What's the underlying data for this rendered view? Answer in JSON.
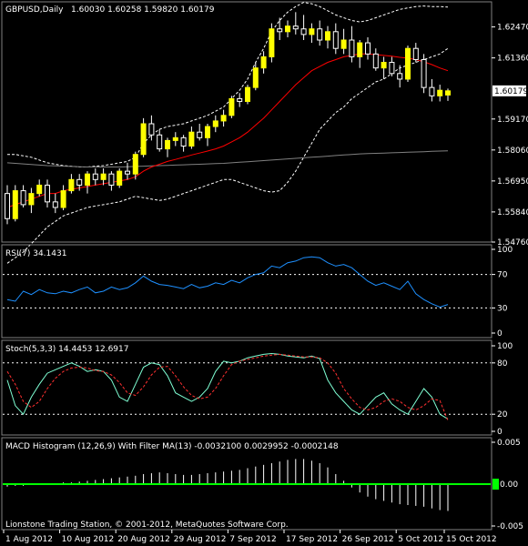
{
  "header": {
    "symbol": "GBPUSD,Daily",
    "ohlc": "1.60030 1.60258 1.59820 1.60179"
  },
  "footer": {
    "copyright": "Lionstone Trading Station, © 2001-2012, MetaQuotes Software Corp."
  },
  "colors": {
    "background": "#000000",
    "panel_border": "#808080",
    "bull_candle": "#ffff00",
    "bear_candle": "#000000",
    "candle_wick": "#ffffff",
    "ma_red": "#ff0000",
    "ma_gray": "#808080",
    "bands": "#ffffff",
    "rsi_line": "#1e90ff",
    "stoch_main": "#7fffd4",
    "stoch_signal": "#ff3030",
    "macd_hist": "#ffffff",
    "macd_signal": "#00ff00",
    "price_tag_bg": "#ffffff",
    "price_tag_text": "#000000"
  },
  "chart_data": [
    {
      "type": "candlestick",
      "title": "GBPUSD,Daily",
      "ylim": [
        1.5476,
        1.6337
      ],
      "y_ticks": [
        "1.62470",
        "1.61360",
        "1.60179",
        "1.59170",
        "1.58060",
        "1.56950",
        "1.55840",
        "1.54760"
      ],
      "current_price": "1.60179",
      "x_ticks": [
        "1 Aug 2012",
        "10 Aug 2012",
        "20 Aug 2012",
        "29 Aug 2012",
        "7 Sep 2012",
        "17 Sep 2012",
        "26 Sep 2012",
        "5 Oct 2012",
        "15 Oct 2012"
      ],
      "candles": [
        [
          1.565,
          1.568,
          1.554,
          1.556
        ],
        [
          1.556,
          1.568,
          1.555,
          1.566
        ],
        [
          1.566,
          1.568,
          1.56,
          1.561
        ],
        [
          1.561,
          1.567,
          1.558,
          1.565
        ],
        [
          1.565,
          1.57,
          1.564,
          1.568
        ],
        [
          1.568,
          1.57,
          1.56,
          1.562
        ],
        [
          1.562,
          1.565,
          1.558,
          1.56
        ],
        [
          1.56,
          1.568,
          1.559,
          1.566
        ],
        [
          1.566,
          1.572,
          1.565,
          1.57
        ],
        [
          1.57,
          1.572,
          1.566,
          1.568
        ],
        [
          1.568,
          1.573,
          1.565,
          1.572
        ],
        [
          1.572,
          1.574,
          1.568,
          1.57
        ],
        [
          1.57,
          1.574,
          1.568,
          1.572
        ],
        [
          1.572,
          1.573,
          1.566,
          1.568
        ],
        [
          1.568,
          1.574,
          1.567,
          1.573
        ],
        [
          1.573,
          1.576,
          1.57,
          1.572
        ],
        [
          1.572,
          1.58,
          1.57,
          1.579
        ],
        [
          1.579,
          1.592,
          1.578,
          1.59
        ],
        [
          1.59,
          1.593,
          1.584,
          1.586
        ],
        [
          1.586,
          1.588,
          1.58,
          1.581
        ],
        [
          1.581,
          1.585,
          1.578,
          1.584
        ],
        [
          1.584,
          1.587,
          1.582,
          1.585
        ],
        [
          1.585,
          1.586,
          1.58,
          1.582
        ],
        [
          1.582,
          1.589,
          1.581,
          1.587
        ],
        [
          1.587,
          1.59,
          1.584,
          1.585
        ],
        [
          1.585,
          1.59,
          1.582,
          1.589
        ],
        [
          1.589,
          1.593,
          1.587,
          1.591
        ],
        [
          1.591,
          1.595,
          1.589,
          1.593
        ],
        [
          1.593,
          1.6,
          1.592,
          1.599
        ],
        [
          1.599,
          1.601,
          1.596,
          1.598
        ],
        [
          1.598,
          1.604,
          1.597,
          1.603
        ],
        [
          1.603,
          1.612,
          1.602,
          1.61
        ],
        [
          1.61,
          1.616,
          1.608,
          1.614
        ],
        [
          1.614,
          1.626,
          1.612,
          1.624
        ],
        [
          1.624,
          1.628,
          1.62,
          1.623
        ],
        [
          1.623,
          1.627,
          1.621,
          1.625
        ],
        [
          1.625,
          1.63,
          1.622,
          1.624
        ],
        [
          1.624,
          1.629,
          1.62,
          1.622
        ],
        [
          1.622,
          1.626,
          1.619,
          1.624
        ],
        [
          1.624,
          1.627,
          1.618,
          1.62
        ],
        [
          1.62,
          1.625,
          1.617,
          1.623
        ],
        [
          1.623,
          1.626,
          1.615,
          1.617
        ],
        [
          1.617,
          1.624,
          1.615,
          1.62
        ],
        [
          1.62,
          1.625,
          1.612,
          1.614
        ],
        [
          1.614,
          1.62,
          1.61,
          1.619
        ],
        [
          1.619,
          1.621,
          1.613,
          1.615
        ],
        [
          1.615,
          1.617,
          1.609,
          1.61
        ],
        [
          1.61,
          1.614,
          1.606,
          1.612
        ],
        [
          1.612,
          1.614,
          1.607,
          1.608
        ],
        [
          1.608,
          1.611,
          1.603,
          1.606
        ],
        [
          1.606,
          1.618,
          1.605,
          1.617
        ],
        [
          1.617,
          1.619,
          1.612,
          1.613
        ],
        [
          1.613,
          1.615,
          1.601,
          1.603
        ],
        [
          1.603,
          1.606,
          1.598,
          1.6
        ],
        [
          1.6,
          1.604,
          1.598,
          1.602
        ],
        [
          1.6003,
          1.60258,
          1.5982,
          1.60179
        ]
      ],
      "ma_red": [
        1.56,
        1.561,
        1.562,
        1.563,
        1.564,
        1.565,
        1.565,
        1.566,
        1.5665,
        1.567,
        1.5675,
        1.568,
        1.5685,
        1.569,
        1.5695,
        1.57,
        1.571,
        1.573,
        1.5745,
        1.5755,
        1.5765,
        1.5772,
        1.578,
        1.5788,
        1.5795,
        1.5802,
        1.581,
        1.582,
        1.5835,
        1.585,
        1.587,
        1.5895,
        1.592,
        1.595,
        1.598,
        1.601,
        1.604,
        1.6065,
        1.609,
        1.6105,
        1.612,
        1.613,
        1.614,
        1.6145,
        1.615,
        1.615,
        1.6148,
        1.6145,
        1.6142,
        1.6138,
        1.6135,
        1.613,
        1.6122,
        1.6112,
        1.61,
        1.609
      ],
      "ma_gray": [
        1.576,
        1.5758,
        1.5756,
        1.5754,
        1.5752,
        1.575,
        1.5749,
        1.5748,
        1.5747,
        1.5746,
        1.5745,
        1.5745,
        1.5745,
        1.5745,
        1.5745,
        1.5746,
        1.5747,
        1.5748,
        1.5749,
        1.575,
        1.5751,
        1.5752,
        1.5753,
        1.5754,
        1.5755,
        1.5756,
        1.5757,
        1.5758,
        1.576,
        1.5762,
        1.5764,
        1.5766,
        1.5768,
        1.577,
        1.5772,
        1.5774,
        1.5776,
        1.5778,
        1.578,
        1.5782,
        1.5784,
        1.5786,
        1.5788,
        1.579,
        1.5792,
        1.5793,
        1.5794,
        1.5795,
        1.5796,
        1.5797,
        1.5798,
        1.5799,
        1.58,
        1.5801,
        1.5802,
        1.5803
      ],
      "band_upper": [
        1.579,
        1.579,
        1.5785,
        1.578,
        1.577,
        1.576,
        1.5755,
        1.575,
        1.5748,
        1.5745,
        1.5745,
        1.5748,
        1.575,
        1.5755,
        1.576,
        1.5765,
        1.578,
        1.583,
        1.586,
        1.588,
        1.589,
        1.5895,
        1.59,
        1.591,
        1.592,
        1.593,
        1.5945,
        1.596,
        1.599,
        1.602,
        1.606,
        1.612,
        1.617,
        1.623,
        1.627,
        1.63,
        1.632,
        1.6335,
        1.633,
        1.632,
        1.6305,
        1.629,
        1.628,
        1.627,
        1.6265,
        1.627,
        1.628,
        1.629,
        1.63,
        1.631,
        1.6315,
        1.632,
        1.6322,
        1.632,
        1.632,
        1.6318
      ],
      "band_lower": [
        1.54,
        1.542,
        1.544,
        1.547,
        1.55,
        1.553,
        1.555,
        1.557,
        1.558,
        1.559,
        1.56,
        1.5605,
        1.561,
        1.5615,
        1.562,
        1.563,
        1.564,
        1.5635,
        1.563,
        1.5625,
        1.563,
        1.564,
        1.565,
        1.566,
        1.567,
        1.568,
        1.569,
        1.57,
        1.57,
        1.569,
        1.568,
        1.567,
        1.566,
        1.5655,
        1.566,
        1.569,
        1.573,
        1.578,
        1.583,
        1.588,
        1.591,
        1.594,
        1.596,
        1.599,
        1.601,
        1.603,
        1.605,
        1.606,
        1.608,
        1.61,
        1.611,
        1.612,
        1.613,
        1.614,
        1.615,
        1.617
      ]
    },
    {
      "type": "line",
      "title": "RSI(7) 34.1431",
      "ylim": [
        0,
        100
      ],
      "y_ticks": [
        "100",
        "70",
        "30",
        "0"
      ],
      "levels": [
        70,
        30
      ],
      "values": [
        40,
        38,
        50,
        46,
        52,
        48,
        47,
        50,
        48,
        52,
        55,
        48,
        50,
        55,
        52,
        54,
        60,
        68,
        62,
        58,
        57,
        55,
        53,
        58,
        54,
        56,
        60,
        58,
        63,
        60,
        66,
        70,
        72,
        80,
        78,
        84,
        86,
        90,
        91,
        90,
        84,
        80,
        82,
        78,
        70,
        62,
        57,
        60,
        56,
        52,
        62,
        47,
        40,
        35,
        31,
        34.1431
      ]
    },
    {
      "type": "line",
      "title": "Stoch(5,3,3) 14.4453 12.6917",
      "ylim": [
        0,
        100
      ],
      "y_ticks": [
        "100",
        "80",
        "20",
        "0"
      ],
      "levels": [
        80,
        20
      ],
      "series": [
        {
          "values": [
            60,
            30,
            20,
            40,
            55,
            68,
            72,
            76,
            80,
            76,
            70,
            72,
            70,
            60,
            40,
            35,
            55,
            75,
            80,
            78,
            65,
            45,
            40,
            35,
            40,
            50,
            70,
            82,
            80,
            82,
            86,
            88,
            90,
            91,
            90,
            88,
            87,
            86,
            88,
            85,
            60,
            45,
            35,
            25,
            20,
            30,
            40,
            45,
            32,
            25,
            20,
            35,
            50,
            40,
            20,
            14.4453
          ]
        },
        {
          "values": [
            70,
            55,
            35,
            28,
            35,
            50,
            62,
            70,
            74,
            75,
            74,
            71,
            70,
            66,
            57,
            45,
            42,
            52,
            66,
            75,
            76,
            65,
            52,
            42,
            38,
            40,
            50,
            65,
            78,
            82,
            84,
            86,
            88,
            89,
            90,
            89,
            88,
            87,
            87,
            86,
            80,
            68,
            50,
            38,
            28,
            25,
            28,
            35,
            38,
            35,
            28,
            25,
            30,
            38,
            36,
            12.6917
          ]
        }
      ]
    },
    {
      "type": "bar",
      "title": "MACD Histogram (12,26,9) With Filter MA(13) -0.0032100 0.0029952 -0.0002148",
      "ylim": [
        -0.005,
        0.005
      ],
      "y_ticks": [
        "0.005",
        "0.00",
        "-0.005"
      ],
      "signal_value": 0,
      "values": [
        -0.0003,
        -0.0002,
        -0.0002,
        -0.0001,
        0,
        0.0001,
        0.0001,
        0.0002,
        0.0002,
        0.0003,
        0.0004,
        0.0005,
        0.0006,
        0.0007,
        0.0008,
        0.0009,
        0.001,
        0.0012,
        0.0013,
        0.0014,
        0.0013,
        0.0012,
        0.0011,
        0.0011,
        0.0012,
        0.0013,
        0.0014,
        0.0015,
        0.0016,
        0.0017,
        0.0019,
        0.0021,
        0.0023,
        0.0025,
        0.0027,
        0.0029,
        0.003,
        0.003,
        0.0028,
        0.0025,
        0.002,
        0.0012,
        0.0004,
        -0.0004,
        -0.001,
        -0.0015,
        -0.0018,
        -0.002,
        -0.0022,
        -0.0024,
        -0.0025,
        -0.0026,
        -0.0027,
        -0.0029,
        -0.0031,
        -0.00321
      ]
    }
  ]
}
